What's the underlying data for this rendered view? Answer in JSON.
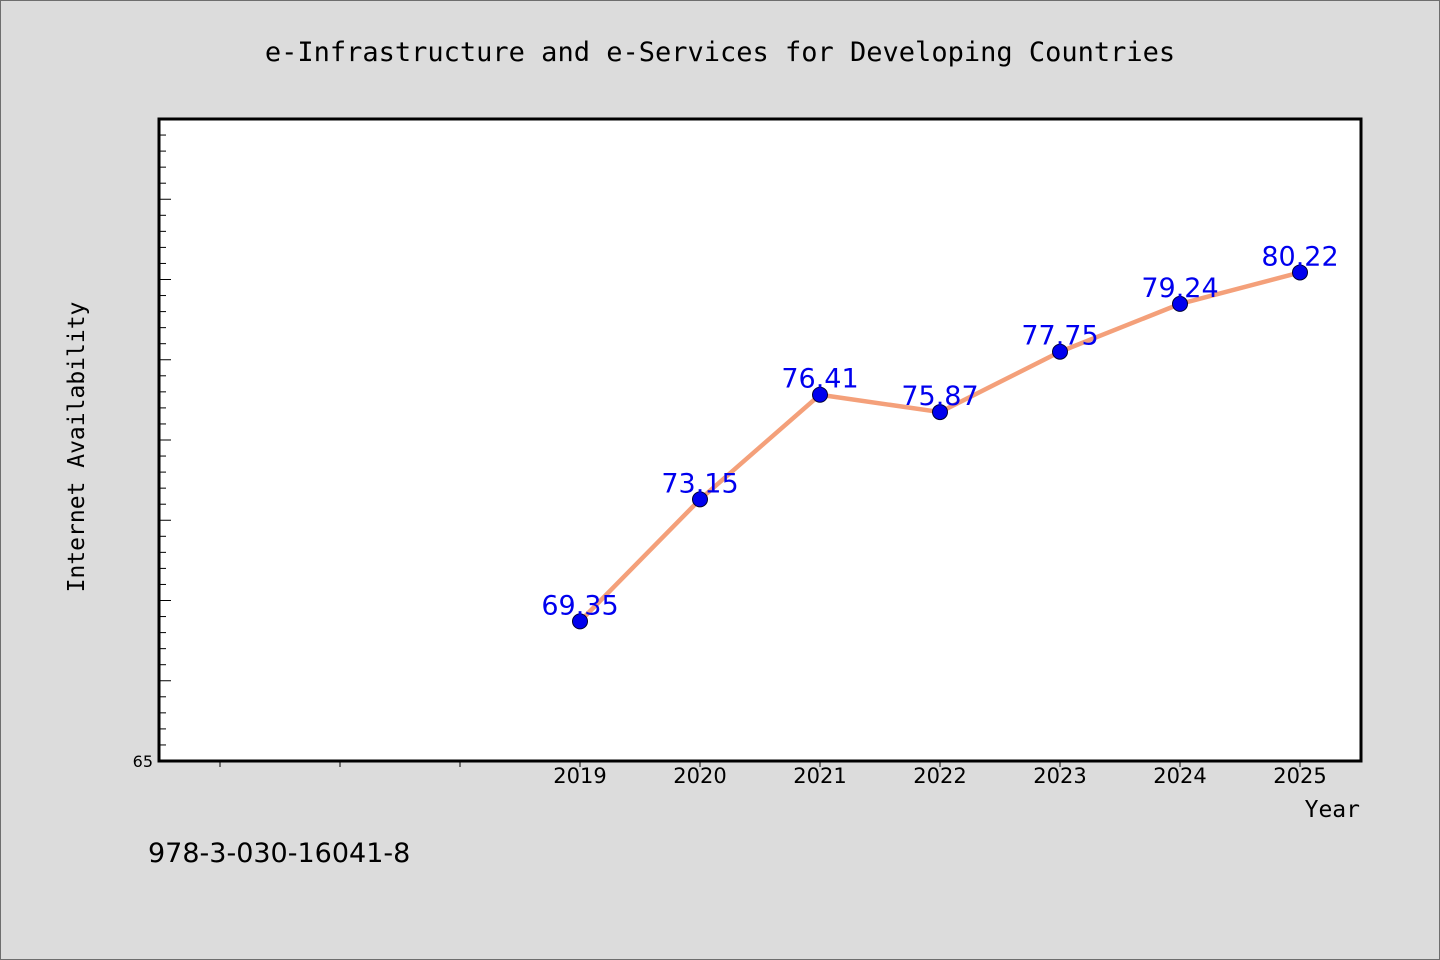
{
  "chart_data": {
    "type": "line",
    "title": "e-Infrastructure and e-Services for Developing Countries",
    "xlabel": "Year",
    "ylabel": "Internet Availability",
    "categories": [
      "2019",
      "2020",
      "2021",
      "2022",
      "2023",
      "2024",
      "2025"
    ],
    "series": [
      {
        "values": [
          69.35,
          73.15,
          76.41,
          75.87,
          77.75,
          79.24,
          80.22
        ],
        "labels": [
          "69.35",
          "73.15",
          "76.41",
          "75.87",
          "77.75",
          "79.24",
          "80.22"
        ]
      }
    ],
    "ylim": [
      65,
      85
    ],
    "y_tick_labels": [
      "65"
    ],
    "grid": false,
    "legend": "none",
    "colors": {
      "line": "#f4a07a",
      "marker": "#0000ee",
      "data_label": "#0000ee",
      "plot_background": "#ffffff",
      "page_background": "#dcdcdc"
    }
  },
  "caption": "978-3-030-16041-8"
}
